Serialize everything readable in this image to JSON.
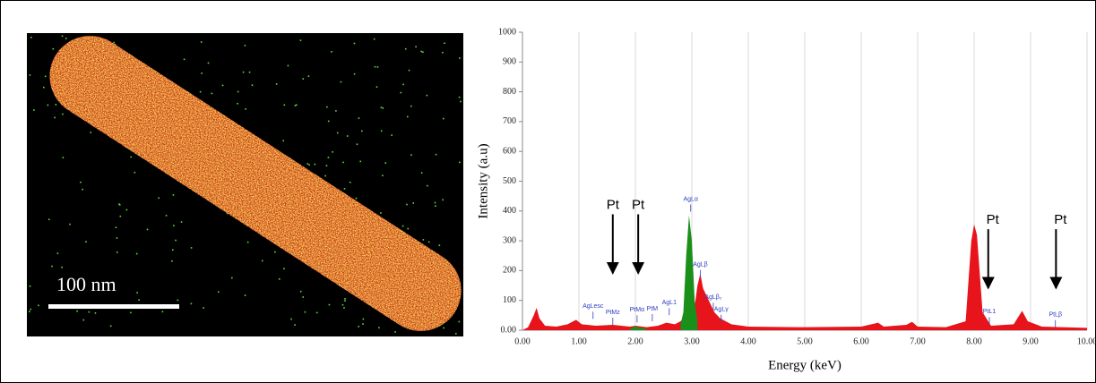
{
  "image": {
    "scale_label": "100 nm"
  },
  "chart_data": {
    "type": "area",
    "y_label": "Intensity (a.u)",
    "x_label": "Energy (keV)",
    "xlim": [
      0,
      10
    ],
    "ylim": [
      0,
      1000
    ],
    "grid": "x",
    "xticks": [
      {
        "value": 0,
        "label": "0.00"
      },
      {
        "value": 1,
        "label": "1.00"
      },
      {
        "value": 2,
        "label": "2.00"
      },
      {
        "value": 3,
        "label": "3.00"
      },
      {
        "value": 4,
        "label": "4.00"
      },
      {
        "value": 5,
        "label": "5.00"
      },
      {
        "value": 6,
        "label": "6.00"
      },
      {
        "value": 7,
        "label": "7.00"
      },
      {
        "value": 8,
        "label": "8.00"
      },
      {
        "value": 9,
        "label": "9.00"
      },
      {
        "value": 10,
        "label": "10.00"
      }
    ],
    "yticks": [
      {
        "value": 0,
        "label": "0.00"
      },
      100,
      200,
      300,
      400,
      500,
      600,
      700,
      800,
      900,
      1000
    ],
    "series": [
      {
        "color": "#e8141b",
        "x": [
          0,
          0.1,
          0.2,
          0.25,
          0.3,
          0.4,
          0.6,
          0.8,
          0.95,
          1.05,
          1.3,
          1.6,
          1.9,
          2.0,
          2.2,
          2.4,
          2.55,
          2.7,
          2.8,
          3.05,
          3.1,
          3.15,
          3.2,
          3.3,
          3.4,
          3.5,
          3.7,
          4.0,
          5.0,
          6.0,
          6.3,
          6.4,
          6.8,
          6.9,
          7.0,
          7.5,
          7.85,
          7.95,
          8.0,
          8.05,
          8.15,
          8.3,
          8.7,
          8.85,
          8.95,
          9.2,
          10
        ],
        "values": [
          0,
          10,
          50,
          75,
          40,
          15,
          12,
          20,
          35,
          20,
          15,
          18,
          12,
          15,
          10,
          15,
          25,
          20,
          30,
          80,
          150,
          190,
          140,
          100,
          60,
          40,
          20,
          12,
          10,
          12,
          25,
          12,
          18,
          28,
          12,
          10,
          30,
          300,
          355,
          320,
          60,
          15,
          20,
          65,
          30,
          12,
          8
        ]
      },
      {
        "color": "#1a8f1a",
        "x": [
          1.9,
          2.0,
          2.1,
          2.2,
          2.5,
          2.8,
          2.85,
          2.9,
          2.95,
          3.0,
          3.05,
          3.1
        ],
        "values": [
          5,
          12,
          8,
          5,
          null,
          20,
          60,
          250,
          385,
          300,
          100,
          30
        ]
      }
    ],
    "annotations": [
      {
        "text": "AgLesc",
        "x": 1.25,
        "y": 80
      },
      {
        "text": "PtMz",
        "x": 1.6,
        "y": 60
      },
      {
        "text": "PtMα",
        "x": 2.03,
        "y": 68
      },
      {
        "text": "PtM",
        "x": 2.3,
        "y": 72
      },
      {
        "text": "AgL1",
        "x": 2.6,
        "y": 92
      },
      {
        "text": "AgLα",
        "x": 2.98,
        "y": 440
      },
      {
        "text": "AgLβ",
        "x": 3.15,
        "y": 220
      },
      {
        "text": "AgLβ₂",
        "x": 3.38,
        "y": 110
      },
      {
        "text": "AgLγ",
        "x": 3.52,
        "y": 70
      },
      {
        "text": "PtL1",
        "x": 8.27,
        "y": 62
      },
      {
        "text": "PtLβ",
        "x": 9.44,
        "y": 52
      }
    ],
    "arrows": [
      {
        "text": "Pt",
        "x": 1.6,
        "y": 365
      },
      {
        "text": "Pt",
        "x": 2.05,
        "y": 365
      },
      {
        "text": "Pt",
        "x": 8.25,
        "y": 315
      },
      {
        "text": "Pt",
        "x": 9.45,
        "y": 315
      }
    ]
  }
}
